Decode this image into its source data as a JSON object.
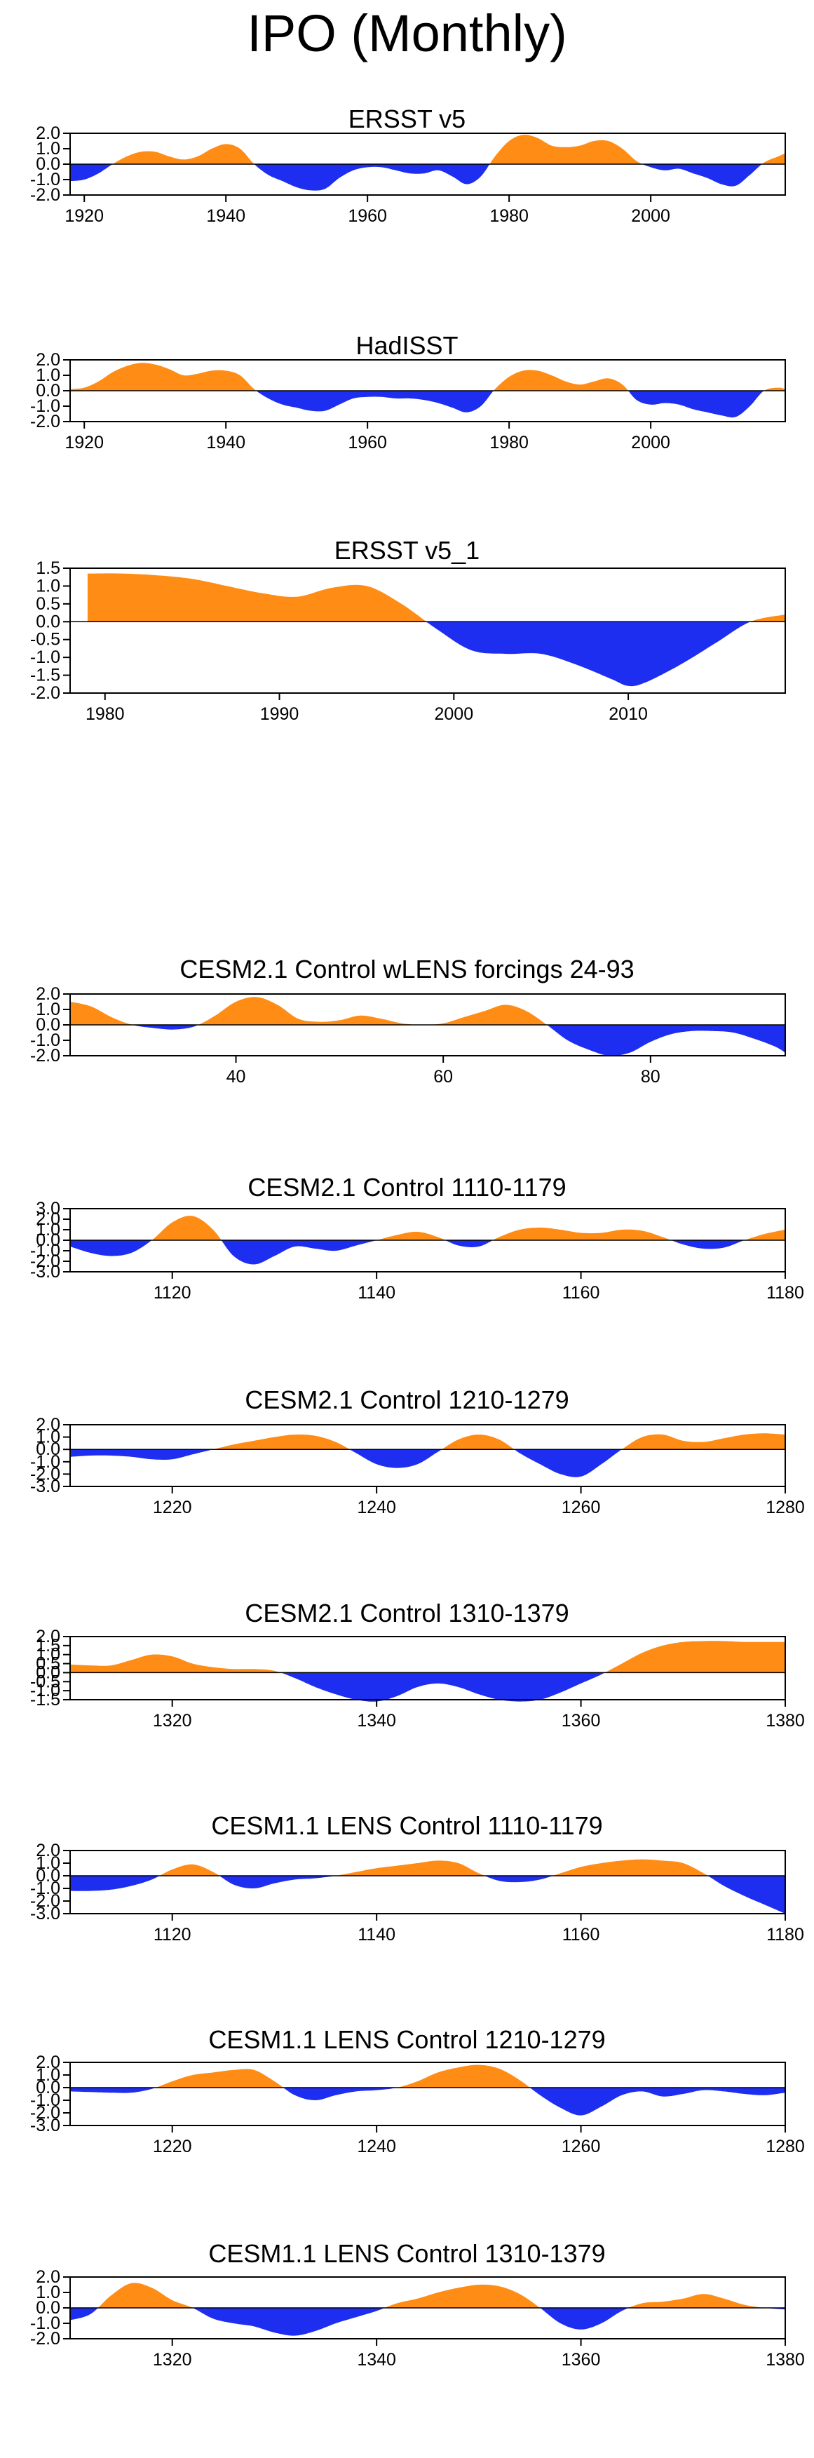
{
  "title": "IPO (Monthly)",
  "colors": {
    "positive": "#FF8C14",
    "negative": "#1E2EF0",
    "frame": "#000000"
  },
  "chart_data": [
    {
      "type": "area",
      "title": "ERSST v5",
      "xlim": [
        1918,
        2019
      ],
      "ylim": [
        -2.0,
        2.0
      ],
      "xticks": [
        1920,
        1940,
        1960,
        1980,
        2000
      ],
      "yticks": [
        -2.0,
        -1.0,
        0.0,
        1.0,
        2.0
      ],
      "series": [
        {
          "x": [
            1918,
            1920,
            1922,
            1924,
            1926,
            1928,
            1930,
            1932,
            1934,
            1936,
            1938,
            1940,
            1942,
            1944,
            1946,
            1948,
            1950,
            1952,
            1954,
            1956,
            1958,
            1960,
            1962,
            1964,
            1966,
            1968,
            1970,
            1972,
            1974,
            1976,
            1978,
            1980,
            1982,
            1984,
            1986,
            1988,
            1990,
            1992,
            1994,
            1996,
            1998,
            2000,
            2002,
            2004,
            2006,
            2008,
            2010,
            2012,
            2014,
            2016,
            2018,
            2019
          ],
          "y": [
            -1.1,
            -1.0,
            -0.6,
            0.0,
            0.5,
            0.8,
            0.8,
            0.5,
            0.3,
            0.5,
            1.0,
            1.3,
            1.0,
            0.0,
            -0.7,
            -1.1,
            -1.5,
            -1.7,
            -1.6,
            -0.9,
            -0.4,
            -0.2,
            -0.2,
            -0.4,
            -0.6,
            -0.6,
            -0.4,
            -0.8,
            -1.3,
            -0.8,
            0.5,
            1.5,
            1.9,
            1.7,
            1.2,
            1.1,
            1.2,
            1.5,
            1.5,
            1.0,
            0.2,
            -0.2,
            -0.4,
            -0.3,
            -0.6,
            -0.9,
            -1.3,
            -1.4,
            -0.7,
            0.1,
            0.5,
            0.7
          ]
        }
      ]
    },
    {
      "type": "area",
      "title": "HadISST",
      "xlim": [
        1918,
        2019
      ],
      "ylim": [
        -2.0,
        2.0
      ],
      "xticks": [
        1920,
        1940,
        1960,
        1980,
        2000
      ],
      "yticks": [
        -2.0,
        -1.0,
        0.0,
        1.0,
        2.0
      ],
      "series": [
        {
          "x": [
            1918,
            1920,
            1922,
            1924,
            1926,
            1928,
            1930,
            1932,
            1934,
            1936,
            1938,
            1940,
            1942,
            1944,
            1946,
            1948,
            1950,
            1952,
            1954,
            1956,
            1958,
            1960,
            1962,
            1964,
            1966,
            1968,
            1970,
            1972,
            1974,
            1976,
            1978,
            1980,
            1982,
            1984,
            1986,
            1988,
            1990,
            1992,
            1994,
            1996,
            1998,
            2000,
            2002,
            2004,
            2006,
            2008,
            2010,
            2012,
            2014,
            2016,
            2018,
            2019
          ],
          "y": [
            0.1,
            0.2,
            0.6,
            1.2,
            1.6,
            1.8,
            1.7,
            1.4,
            1.0,
            1.1,
            1.3,
            1.3,
            1.0,
            0.1,
            -0.5,
            -0.9,
            -1.1,
            -1.3,
            -1.3,
            -0.9,
            -0.5,
            -0.4,
            -0.4,
            -0.5,
            -0.5,
            -0.6,
            -0.8,
            -1.1,
            -1.4,
            -1.0,
            0.1,
            0.9,
            1.3,
            1.3,
            1.0,
            0.6,
            0.4,
            0.6,
            0.8,
            0.4,
            -0.6,
            -0.9,
            -0.8,
            -0.9,
            -1.2,
            -1.4,
            -1.6,
            -1.7,
            -1.0,
            0.0,
            0.2,
            0.1
          ]
        }
      ]
    },
    {
      "type": "area",
      "title": "ERSST v5_1",
      "xlim": [
        1978,
        2019
      ],
      "ylim": [
        -2.0,
        1.5
      ],
      "xticks": [
        1980,
        1990,
        2000,
        2010
      ],
      "yticks": [
        -2.0,
        -1.5,
        -1.0,
        -0.5,
        0.0,
        0.5,
        1.0,
        1.5
      ],
      "series": [
        {
          "x": [
            1979,
            1981,
            1983,
            1985,
            1987,
            1989,
            1991,
            1993,
            1995,
            1997,
            1999,
            2001,
            2003,
            2005,
            2007,
            2009,
            2010,
            2011,
            2013,
            2015,
            2017,
            2019
          ],
          "y": [
            1.35,
            1.35,
            1.3,
            1.2,
            1.0,
            0.8,
            0.7,
            0.95,
            1.0,
            0.5,
            -0.2,
            -0.8,
            -0.9,
            -0.9,
            -1.2,
            -1.6,
            -1.8,
            -1.7,
            -1.2,
            -0.6,
            0.0,
            0.2
          ]
        }
      ]
    },
    {
      "type": "area",
      "title": "CESM2.1 Control wLENS forcings 24-93",
      "xlim": [
        24,
        93
      ],
      "ylim": [
        -2.0,
        2.0
      ],
      "xticks": [
        40,
        60,
        80
      ],
      "yticks": [
        -2.0,
        -1.0,
        0.0,
        1.0,
        2.0
      ],
      "series": [
        {
          "x": [
            24,
            26,
            28,
            30,
            32,
            34,
            36,
            38,
            40,
            42,
            44,
            46,
            48,
            50,
            52,
            54,
            56,
            58,
            60,
            62,
            64,
            66,
            68,
            70,
            72,
            74,
            76,
            78,
            80,
            82,
            84,
            86,
            88,
            90,
            92,
            93
          ],
          "y": [
            1.5,
            1.2,
            0.5,
            0.0,
            -0.2,
            -0.3,
            -0.1,
            0.6,
            1.5,
            1.8,
            1.3,
            0.4,
            0.2,
            0.3,
            0.6,
            0.4,
            0.1,
            0.0,
            0.1,
            0.5,
            0.9,
            1.3,
            0.9,
            0.0,
            -1.0,
            -1.6,
            -2.0,
            -1.8,
            -1.1,
            -0.6,
            -0.4,
            -0.4,
            -0.5,
            -0.9,
            -1.4,
            -1.8
          ]
        }
      ]
    },
    {
      "type": "area",
      "title": "CESM2.1 Control 1110-1179",
      "xlim": [
        1110,
        1180
      ],
      "ylim": [
        -3.0,
        3.0
      ],
      "xticks": [
        1120,
        1140,
        1160,
        1180
      ],
      "yticks": [
        -3.0,
        -2.0,
        -1.0,
        0.0,
        1.0,
        2.0,
        3.0
      ],
      "series": [
        {
          "x": [
            1110,
            1112,
            1114,
            1116,
            1118,
            1120,
            1122,
            1124,
            1126,
            1128,
            1130,
            1132,
            1134,
            1136,
            1138,
            1140,
            1142,
            1144,
            1146,
            1148,
            1150,
            1152,
            1154,
            1156,
            1158,
            1160,
            1162,
            1164,
            1166,
            1168,
            1170,
            1172,
            1174,
            1176,
            1178,
            1180
          ],
          "y": [
            -0.6,
            -1.2,
            -1.5,
            -1.2,
            0.0,
            1.7,
            2.3,
            1.0,
            -1.5,
            -2.3,
            -1.5,
            -0.6,
            -0.8,
            -1.0,
            -0.5,
            0.0,
            0.5,
            0.8,
            0.3,
            -0.5,
            -0.6,
            0.3,
            1.0,
            1.2,
            1.0,
            0.7,
            0.7,
            1.0,
            0.9,
            0.3,
            -0.4,
            -0.8,
            -0.7,
            0.0,
            0.6,
            1.0
          ]
        }
      ]
    },
    {
      "type": "area",
      "title": "CESM2.1 Control 1210-1279",
      "xlim": [
        1210,
        1280
      ],
      "ylim": [
        -3.0,
        2.0
      ],
      "xticks": [
        1220,
        1240,
        1260,
        1280
      ],
      "yticks": [
        -3.0,
        -2.0,
        -1.0,
        0.0,
        1.0,
        2.0
      ],
      "series": [
        {
          "x": [
            1210,
            1212,
            1214,
            1216,
            1218,
            1220,
            1222,
            1224,
            1226,
            1228,
            1230,
            1232,
            1234,
            1236,
            1238,
            1240,
            1242,
            1244,
            1246,
            1248,
            1250,
            1252,
            1254,
            1256,
            1258,
            1260,
            1262,
            1264,
            1266,
            1268,
            1270,
            1272,
            1274,
            1276,
            1278,
            1280
          ],
          "y": [
            -0.6,
            -0.5,
            -0.5,
            -0.6,
            -0.8,
            -0.8,
            -0.4,
            0.0,
            0.4,
            0.7,
            1.0,
            1.2,
            1.1,
            0.6,
            -0.3,
            -1.2,
            -1.5,
            -1.2,
            -0.2,
            0.8,
            1.2,
            0.8,
            -0.3,
            -1.2,
            -2.0,
            -2.2,
            -1.2,
            0.0,
            1.0,
            1.2,
            0.7,
            0.6,
            0.9,
            1.2,
            1.3,
            1.2
          ]
        }
      ]
    },
    {
      "type": "area",
      "title": "CESM2.1 Control 1310-1379",
      "xlim": [
        1310,
        1380
      ],
      "ylim": [
        -1.5,
        2.0
      ],
      "xticks": [
        1320,
        1340,
        1360,
        1380
      ],
      "yticks": [
        -1.5,
        -1.0,
        -0.5,
        0.0,
        0.5,
        1.0,
        1.5,
        2.0
      ],
      "series": [
        {
          "x": [
            1310,
            1312,
            1314,
            1316,
            1318,
            1320,
            1322,
            1324,
            1326,
            1328,
            1330,
            1332,
            1334,
            1336,
            1338,
            1340,
            1342,
            1344,
            1346,
            1348,
            1350,
            1352,
            1354,
            1356,
            1358,
            1360,
            1362,
            1364,
            1366,
            1368,
            1370,
            1372,
            1374,
            1376,
            1378,
            1380
          ],
          "y": [
            0.45,
            0.4,
            0.4,
            0.7,
            1.0,
            0.9,
            0.5,
            0.3,
            0.2,
            0.2,
            0.1,
            -0.3,
            -0.8,
            -1.2,
            -1.5,
            -1.6,
            -1.3,
            -0.8,
            -0.6,
            -0.8,
            -1.2,
            -1.5,
            -1.6,
            -1.5,
            -1.1,
            -0.6,
            -0.1,
            0.5,
            1.1,
            1.5,
            1.7,
            1.75,
            1.75,
            1.7,
            1.7,
            1.7
          ]
        }
      ]
    },
    {
      "type": "area",
      "title": "CESM1.1 LENS Control 1110-1179",
      "xlim": [
        1110,
        1180
      ],
      "ylim": [
        -3.0,
        2.0
      ],
      "xticks": [
        1120,
        1140,
        1160,
        1180
      ],
      "yticks": [
        -3.0,
        -2.0,
        -1.0,
        0.0,
        1.0,
        2.0
      ],
      "series": [
        {
          "x": [
            1110,
            1112,
            1114,
            1116,
            1118,
            1120,
            1122,
            1124,
            1126,
            1128,
            1130,
            1132,
            1134,
            1136,
            1138,
            1140,
            1142,
            1144,
            1146,
            1148,
            1150,
            1152,
            1154,
            1156,
            1158,
            1160,
            1162,
            1164,
            1166,
            1168,
            1170,
            1172,
            1174,
            1176,
            1178,
            1180
          ],
          "y": [
            -1.2,
            -1.2,
            -1.1,
            -0.8,
            -0.3,
            0.5,
            0.9,
            0.3,
            -0.7,
            -1.0,
            -0.6,
            -0.3,
            -0.2,
            0.0,
            0.3,
            0.6,
            0.8,
            1.0,
            1.2,
            1.0,
            0.2,
            -0.4,
            -0.5,
            -0.3,
            0.2,
            0.7,
            1.0,
            1.2,
            1.3,
            1.2,
            1.0,
            0.2,
            -0.8,
            -1.6,
            -2.3,
            -3.0
          ]
        }
      ]
    },
    {
      "type": "area",
      "title": "CESM1.1 LENS Control 1210-1279",
      "xlim": [
        1210,
        1280
      ],
      "ylim": [
        -3.0,
        2.0
      ],
      "xticks": [
        1220,
        1240,
        1260,
        1280
      ],
      "yticks": [
        -3.0,
        -2.0,
        -1.0,
        0.0,
        1.0,
        2.0
      ],
      "series": [
        {
          "x": [
            1210,
            1212,
            1214,
            1216,
            1218,
            1220,
            1222,
            1224,
            1226,
            1228,
            1230,
            1232,
            1234,
            1236,
            1238,
            1240,
            1242,
            1244,
            1246,
            1248,
            1250,
            1252,
            1254,
            1256,
            1258,
            1260,
            1262,
            1264,
            1266,
            1268,
            1270,
            1272,
            1274,
            1276,
            1278,
            1280
          ],
          "y": [
            -0.3,
            -0.35,
            -0.4,
            -0.4,
            -0.1,
            0.5,
            1.0,
            1.2,
            1.4,
            1.4,
            0.5,
            -0.6,
            -1.0,
            -0.6,
            -0.3,
            -0.2,
            0.0,
            0.5,
            1.2,
            1.6,
            1.8,
            1.5,
            0.6,
            -0.6,
            -1.6,
            -2.2,
            -1.5,
            -0.6,
            -0.3,
            -0.7,
            -0.5,
            -0.2,
            -0.3,
            -0.5,
            -0.6,
            -0.4
          ]
        }
      ]
    },
    {
      "type": "area",
      "title": "CESM1.1 LENS Control 1310-1379",
      "xlim": [
        1310,
        1380
      ],
      "ylim": [
        -2.0,
        2.0
      ],
      "xticks": [
        1320,
        1340,
        1360,
        1380
      ],
      "yticks": [
        -2.0,
        -1.0,
        0.0,
        1.0,
        2.0
      ],
      "series": [
        {
          "x": [
            1310,
            1312,
            1314,
            1316,
            1318,
            1320,
            1322,
            1324,
            1326,
            1328,
            1330,
            1332,
            1334,
            1336,
            1338,
            1340,
            1342,
            1344,
            1346,
            1348,
            1350,
            1352,
            1354,
            1356,
            1358,
            1360,
            1362,
            1364,
            1366,
            1368,
            1370,
            1372,
            1374,
            1376,
            1378,
            1380
          ],
          "y": [
            -0.8,
            -0.4,
            0.8,
            1.6,
            1.3,
            0.5,
            0.0,
            -0.7,
            -1.0,
            -1.2,
            -1.6,
            -1.8,
            -1.5,
            -1.0,
            -0.6,
            -0.2,
            0.3,
            0.6,
            1.0,
            1.3,
            1.5,
            1.4,
            0.9,
            0.0,
            -1.0,
            -1.4,
            -1.0,
            -0.2,
            0.3,
            0.4,
            0.6,
            0.9,
            0.6,
            0.2,
            0.0,
            -0.1
          ]
        }
      ]
    }
  ]
}
